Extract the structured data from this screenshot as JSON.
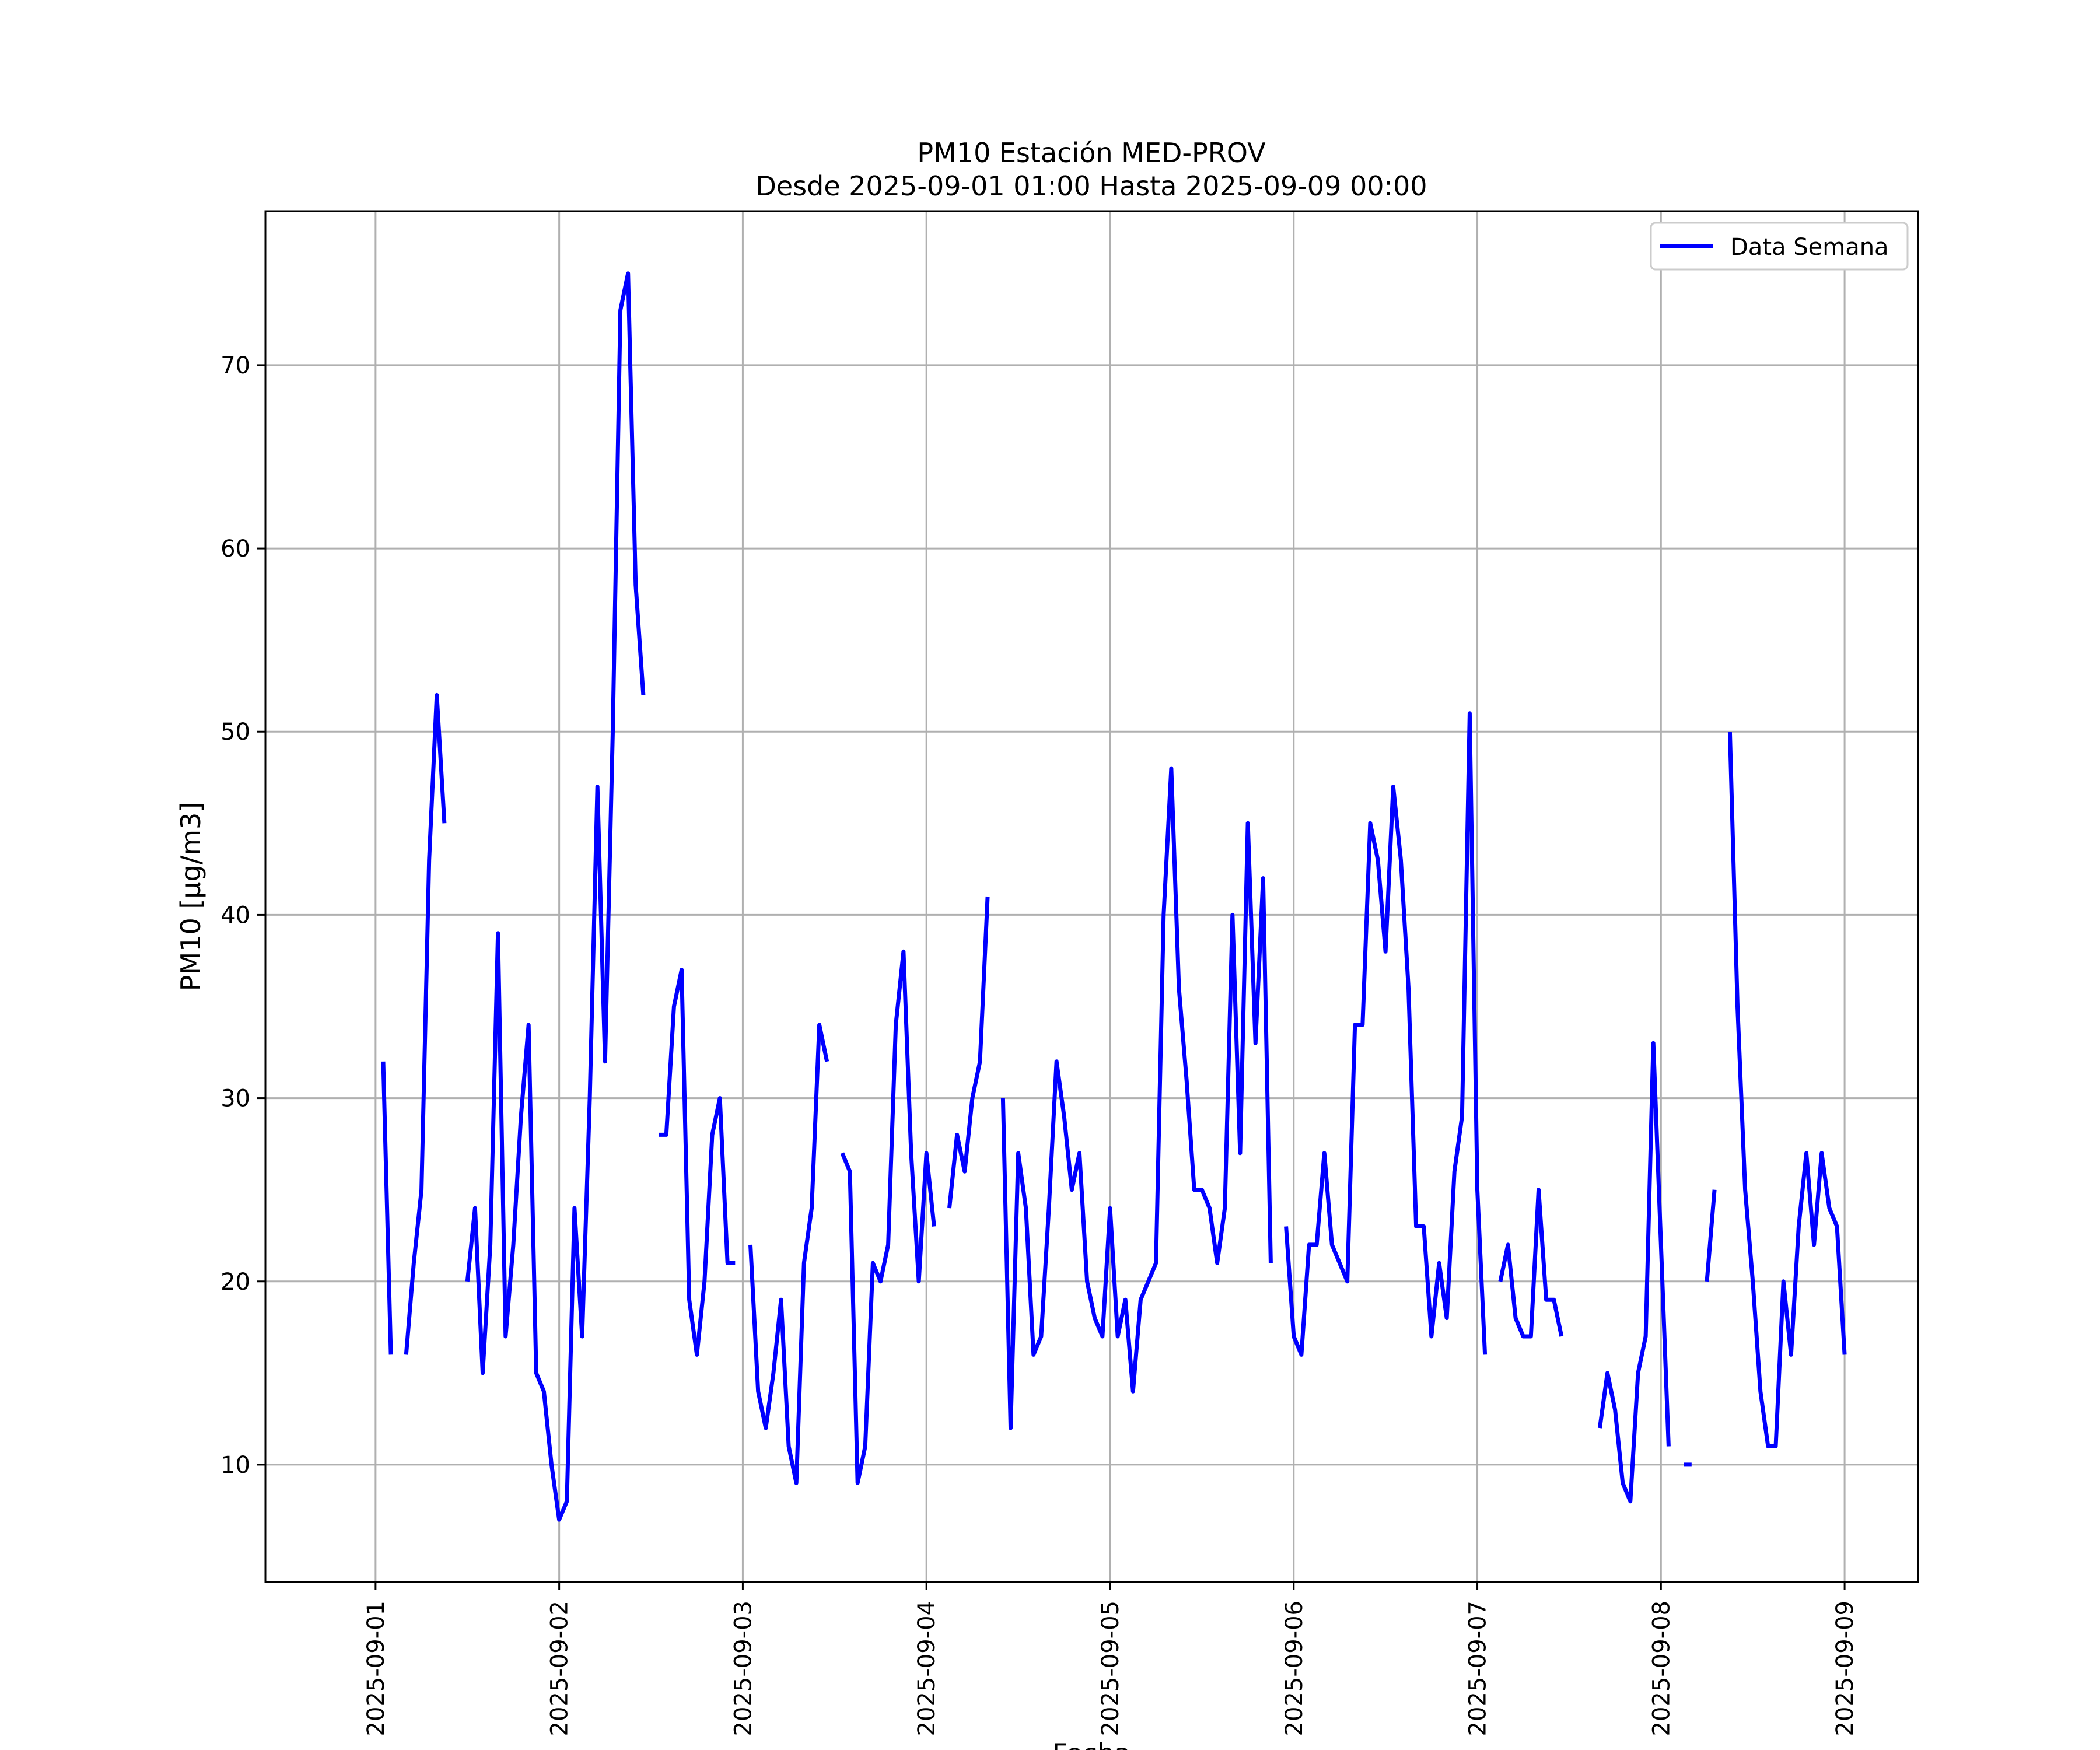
{
  "chart_data": {
    "type": "line",
    "title": "PM10 Estación MED-PROV",
    "subtitle": "Desde 2025-09-01 01:00 Hasta 2025-09-09 00:00",
    "xlabel": "Fecha",
    "ylabel": "PM10 [μg/m3]",
    "x_ticks": [
      "2025-09-01",
      "2025-09-02",
      "2025-09-03",
      "2025-09-04",
      "2025-09-05",
      "2025-09-06",
      "2025-09-07",
      "2025-09-08",
      "2025-09-09"
    ],
    "y_ticks": [
      10,
      20,
      30,
      40,
      50,
      60,
      70
    ],
    "xlim": [
      "2025-08-31 09:36",
      "2025-09-09 09:36"
    ],
    "ylim": [
      3.6,
      78.4
    ],
    "grid": true,
    "legend_position": "top-right",
    "series": [
      {
        "name": "Data Semana",
        "color": "#0000ff",
        "points": [
          [
            "2025-09-01 01:00",
            32
          ],
          [
            "2025-09-01 02:00",
            16
          ],
          [
            "2025-09-01 03:00",
            null
          ],
          [
            "2025-09-01 04:00",
            16
          ],
          [
            "2025-09-01 05:00",
            21
          ],
          [
            "2025-09-01 06:00",
            25
          ],
          [
            "2025-09-01 07:00",
            43
          ],
          [
            "2025-09-01 08:00",
            52
          ],
          [
            "2025-09-01 09:00",
            45
          ],
          [
            "2025-09-01 10:00",
            null
          ],
          [
            "2025-09-01 11:00",
            null
          ],
          [
            "2025-09-01 12:00",
            20
          ],
          [
            "2025-09-01 13:00",
            24
          ],
          [
            "2025-09-01 14:00",
            15
          ],
          [
            "2025-09-01 15:00",
            22
          ],
          [
            "2025-09-01 16:00",
            39
          ],
          [
            "2025-09-01 17:00",
            17
          ],
          [
            "2025-09-01 18:00",
            22
          ],
          [
            "2025-09-01 19:00",
            29
          ],
          [
            "2025-09-01 20:00",
            34
          ],
          [
            "2025-09-01 21:00",
            15
          ],
          [
            "2025-09-01 22:00",
            14
          ],
          [
            "2025-09-01 23:00",
            10
          ],
          [
            "2025-09-02 00:00",
            7
          ],
          [
            "2025-09-02 01:00",
            8
          ],
          [
            "2025-09-02 02:00",
            24
          ],
          [
            "2025-09-02 03:00",
            17
          ],
          [
            "2025-09-02 04:00",
            30
          ],
          [
            "2025-09-02 05:00",
            47
          ],
          [
            "2025-09-02 06:00",
            32
          ],
          [
            "2025-09-02 07:00",
            50
          ],
          [
            "2025-09-02 08:00",
            73
          ],
          [
            "2025-09-02 09:00",
            75
          ],
          [
            "2025-09-02 10:00",
            58
          ],
          [
            "2025-09-02 11:00",
            52
          ],
          [
            "2025-09-02 12:00",
            null
          ],
          [
            "2025-09-02 13:00",
            28
          ],
          [
            "2025-09-02 14:00",
            28
          ],
          [
            "2025-09-02 15:00",
            35
          ],
          [
            "2025-09-02 16:00",
            37
          ],
          [
            "2025-09-02 17:00",
            19
          ],
          [
            "2025-09-02 18:00",
            16
          ],
          [
            "2025-09-02 19:00",
            20
          ],
          [
            "2025-09-02 20:00",
            28
          ],
          [
            "2025-09-02 21:00",
            30
          ],
          [
            "2025-09-02 22:00",
            21
          ],
          [
            "2025-09-02 23:00",
            21
          ],
          [
            "2025-09-03 00:00",
            null
          ],
          [
            "2025-09-03 01:00",
            22
          ],
          [
            "2025-09-03 02:00",
            14
          ],
          [
            "2025-09-03 03:00",
            12
          ],
          [
            "2025-09-03 04:00",
            15
          ],
          [
            "2025-09-03 05:00",
            19
          ],
          [
            "2025-09-03 06:00",
            11
          ],
          [
            "2025-09-03 07:00",
            9
          ],
          [
            "2025-09-03 08:00",
            21
          ],
          [
            "2025-09-03 09:00",
            24
          ],
          [
            "2025-09-03 10:00",
            34
          ],
          [
            "2025-09-03 11:00",
            32
          ],
          [
            "2025-09-03 12:00",
            null
          ],
          [
            "2025-09-03 13:00",
            27
          ],
          [
            "2025-09-03 14:00",
            26
          ],
          [
            "2025-09-03 15:00",
            9
          ],
          [
            "2025-09-03 16:00",
            11
          ],
          [
            "2025-09-03 17:00",
            21
          ],
          [
            "2025-09-03 18:00",
            20
          ],
          [
            "2025-09-03 19:00",
            22
          ],
          [
            "2025-09-03 20:00",
            34
          ],
          [
            "2025-09-03 21:00",
            38
          ],
          [
            "2025-09-03 22:00",
            27
          ],
          [
            "2025-09-03 23:00",
            20
          ],
          [
            "2025-09-04 00:00",
            27
          ],
          [
            "2025-09-04 01:00",
            23
          ],
          [
            "2025-09-04 02:00",
            null
          ],
          [
            "2025-09-04 03:00",
            24
          ],
          [
            "2025-09-04 04:00",
            28
          ],
          [
            "2025-09-04 05:00",
            26
          ],
          [
            "2025-09-04 06:00",
            30
          ],
          [
            "2025-09-04 07:00",
            32
          ],
          [
            "2025-09-04 08:00",
            41
          ],
          [
            "2025-09-04 09:00",
            null
          ],
          [
            "2025-09-04 10:00",
            30
          ],
          [
            "2025-09-04 11:00",
            12
          ],
          [
            "2025-09-04 12:00",
            27
          ],
          [
            "2025-09-04 13:00",
            24
          ],
          [
            "2025-09-04 14:00",
            16
          ],
          [
            "2025-09-04 15:00",
            17
          ],
          [
            "2025-09-04 16:00",
            24
          ],
          [
            "2025-09-04 17:00",
            32
          ],
          [
            "2025-09-04 18:00",
            29
          ],
          [
            "2025-09-04 19:00",
            25
          ],
          [
            "2025-09-04 20:00",
            27
          ],
          [
            "2025-09-04 21:00",
            20
          ],
          [
            "2025-09-04 22:00",
            18
          ],
          [
            "2025-09-04 23:00",
            17
          ],
          [
            "2025-09-05 00:00",
            24
          ],
          [
            "2025-09-05 01:00",
            17
          ],
          [
            "2025-09-05 02:00",
            19
          ],
          [
            "2025-09-05 03:00",
            14
          ],
          [
            "2025-09-05 04:00",
            19
          ],
          [
            "2025-09-05 05:00",
            20
          ],
          [
            "2025-09-05 06:00",
            21
          ],
          [
            "2025-09-05 07:00",
            40
          ],
          [
            "2025-09-05 08:00",
            48
          ],
          [
            "2025-09-05 09:00",
            36
          ],
          [
            "2025-09-05 10:00",
            31
          ],
          [
            "2025-09-05 11:00",
            25
          ],
          [
            "2025-09-05 12:00",
            25
          ],
          [
            "2025-09-05 13:00",
            24
          ],
          [
            "2025-09-05 14:00",
            21
          ],
          [
            "2025-09-05 15:00",
            24
          ],
          [
            "2025-09-05 16:00",
            40
          ],
          [
            "2025-09-05 17:00",
            27
          ],
          [
            "2025-09-05 18:00",
            45
          ],
          [
            "2025-09-05 19:00",
            33
          ],
          [
            "2025-09-05 20:00",
            42
          ],
          [
            "2025-09-05 21:00",
            21
          ],
          [
            "2025-09-05 22:00",
            null
          ],
          [
            "2025-09-05 23:00",
            23
          ],
          [
            "2025-09-06 00:00",
            17
          ],
          [
            "2025-09-06 01:00",
            16
          ],
          [
            "2025-09-06 02:00",
            22
          ],
          [
            "2025-09-06 03:00",
            22
          ],
          [
            "2025-09-06 04:00",
            27
          ],
          [
            "2025-09-06 05:00",
            22
          ],
          [
            "2025-09-06 06:00",
            21
          ],
          [
            "2025-09-06 07:00",
            20
          ],
          [
            "2025-09-06 08:00",
            34
          ],
          [
            "2025-09-06 09:00",
            34
          ],
          [
            "2025-09-06 10:00",
            45
          ],
          [
            "2025-09-06 11:00",
            43
          ],
          [
            "2025-09-06 12:00",
            38
          ],
          [
            "2025-09-06 13:00",
            47
          ],
          [
            "2025-09-06 14:00",
            43
          ],
          [
            "2025-09-06 15:00",
            36
          ],
          [
            "2025-09-06 16:00",
            23
          ],
          [
            "2025-09-06 17:00",
            23
          ],
          [
            "2025-09-06 18:00",
            17
          ],
          [
            "2025-09-06 19:00",
            21
          ],
          [
            "2025-09-06 20:00",
            18
          ],
          [
            "2025-09-06 21:00",
            26
          ],
          [
            "2025-09-06 22:00",
            29
          ],
          [
            "2025-09-06 23:00",
            51
          ],
          [
            "2025-09-07 00:00",
            25
          ],
          [
            "2025-09-07 01:00",
            16
          ],
          [
            "2025-09-07 02:00",
            null
          ],
          [
            "2025-09-07 03:00",
            20
          ],
          [
            "2025-09-07 04:00",
            22
          ],
          [
            "2025-09-07 05:00",
            18
          ],
          [
            "2025-09-07 06:00",
            17
          ],
          [
            "2025-09-07 07:00",
            17
          ],
          [
            "2025-09-07 08:00",
            25
          ],
          [
            "2025-09-07 09:00",
            19
          ],
          [
            "2025-09-07 10:00",
            19
          ],
          [
            "2025-09-07 11:00",
            17
          ],
          [
            "2025-09-07 12:00",
            null
          ],
          [
            "2025-09-07 13:00",
            null
          ],
          [
            "2025-09-07 14:00",
            null
          ],
          [
            "2025-09-07 15:00",
            null
          ],
          [
            "2025-09-07 16:00",
            12
          ],
          [
            "2025-09-07 17:00",
            15
          ],
          [
            "2025-09-07 18:00",
            13
          ],
          [
            "2025-09-07 19:00",
            9
          ],
          [
            "2025-09-07 20:00",
            8
          ],
          [
            "2025-09-07 21:00",
            15
          ],
          [
            "2025-09-07 22:00",
            17
          ],
          [
            "2025-09-07 23:00",
            33
          ],
          [
            "2025-09-08 00:00",
            22
          ],
          [
            "2025-09-08 01:00",
            11
          ],
          [
            "2025-09-08 02:00",
            null
          ],
          [
            "2025-09-08 03:00",
            10
          ],
          [
            "2025-09-08 04:00",
            10
          ],
          [
            "2025-09-08 05:00",
            null
          ],
          [
            "2025-09-08 06:00",
            20
          ],
          [
            "2025-09-08 07:00",
            25
          ],
          [
            "2025-09-08 08:00",
            null
          ],
          [
            "2025-09-08 09:00",
            50
          ],
          [
            "2025-09-08 10:00",
            35
          ],
          [
            "2025-09-08 11:00",
            25
          ],
          [
            "2025-09-08 12:00",
            20
          ],
          [
            "2025-09-08 13:00",
            14
          ],
          [
            "2025-09-08 14:00",
            11
          ],
          [
            "2025-09-08 15:00",
            11
          ],
          [
            "2025-09-08 16:00",
            20
          ],
          [
            "2025-09-08 17:00",
            16
          ],
          [
            "2025-09-08 18:00",
            23
          ],
          [
            "2025-09-08 19:00",
            27
          ],
          [
            "2025-09-08 20:00",
            22
          ],
          [
            "2025-09-08 21:00",
            27
          ],
          [
            "2025-09-08 22:00",
            24
          ],
          [
            "2025-09-08 23:00",
            23
          ],
          [
            "2025-09-09 00:00",
            16
          ]
        ]
      }
    ]
  }
}
